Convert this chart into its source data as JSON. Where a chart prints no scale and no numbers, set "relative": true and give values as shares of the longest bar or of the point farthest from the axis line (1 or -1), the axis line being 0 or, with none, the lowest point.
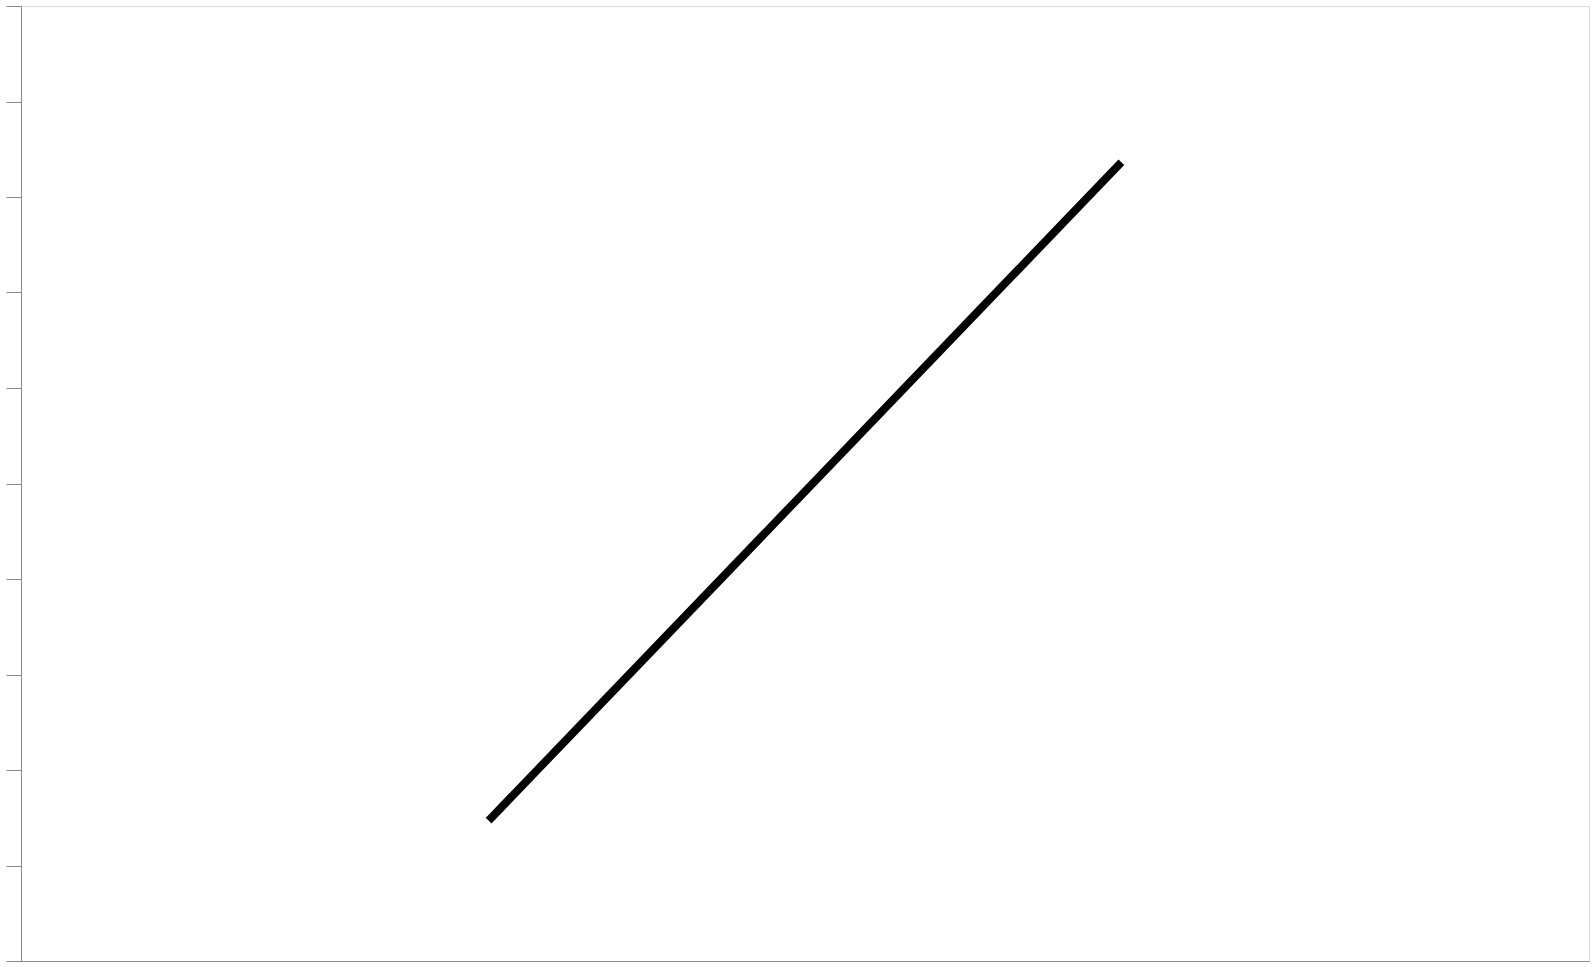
{
  "chart_data": {
    "type": "line",
    "relative": true,
    "tick_labels": false,
    "categories": [
      null,
      null,
      null,
      null,
      null
    ],
    "series": [
      {
        "color": "#000000",
        "values": [
          null,
          0.18,
          0.59,
          1,
          null
        ]
      }
    ],
    "grid": false,
    "line_style": "solid"
  }
}
